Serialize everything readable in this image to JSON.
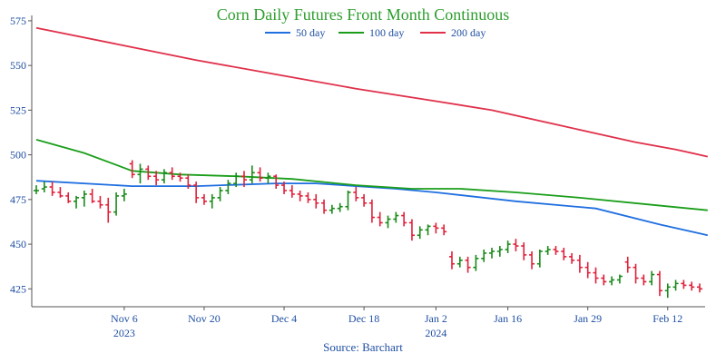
{
  "chart_data": {
    "type": "ohlc",
    "title": "Corn Daily Futures Front Month Continuous",
    "source": "Source: Barchart",
    "xlabel": "",
    "ylabel": "",
    "ylim": [
      415,
      578
    ],
    "yticks": [
      425,
      450,
      475,
      500,
      525,
      550,
      575
    ],
    "xticks": [
      {
        "i": 11,
        "label": "Nov 6",
        "sub": "2023"
      },
      {
        "i": 21,
        "label": "Nov 20",
        "sub": ""
      },
      {
        "i": 31,
        "label": "Dec 4",
        "sub": ""
      },
      {
        "i": 41,
        "label": "Dec 18",
        "sub": ""
      },
      {
        "i": 50,
        "label": "Jan 2",
        "sub": "2024"
      },
      {
        "i": 59,
        "label": "Jan 16",
        "sub": ""
      },
      {
        "i": 69,
        "label": "Jan 29",
        "sub": ""
      },
      {
        "i": 79,
        "label": "Feb 12",
        "sub": ""
      }
    ],
    "legend": [
      {
        "name": "50 day",
        "color": "#1f6fe0"
      },
      {
        "name": "100 day",
        "color": "#1a9e1a"
      },
      {
        "name": "200 day",
        "color": "#e0304a"
      }
    ],
    "up_color": "#1a8a1a",
    "down_color": "#e0203a",
    "n": 84,
    "ohlc": [
      [
        480,
        483,
        478,
        480
      ],
      [
        481,
        485,
        479,
        482
      ],
      [
        482,
        485,
        477,
        479
      ],
      [
        479,
        482,
        476,
        477
      ],
      [
        477,
        479,
        473,
        474
      ],
      [
        474,
        477,
        470,
        476
      ],
      [
        476,
        480,
        471,
        478
      ],
      [
        478,
        481,
        473,
        474
      ],
      [
        474,
        477,
        470,
        472
      ],
      [
        472,
        476,
        462,
        468
      ],
      [
        468,
        479,
        466,
        477
      ],
      [
        477,
        481,
        474,
        478
      ],
      [
        495,
        497,
        487,
        489
      ],
      [
        489,
        495,
        484,
        492
      ],
      [
        492,
        494,
        486,
        488
      ],
      [
        488,
        491,
        483,
        486
      ],
      [
        486,
        492,
        484,
        490
      ],
      [
        490,
        493,
        486,
        488
      ],
      [
        488,
        490,
        485,
        487
      ],
      [
        487,
        489,
        481,
        483
      ],
      [
        483,
        485,
        473,
        476
      ],
      [
        476,
        478,
        472,
        474
      ],
      [
        474,
        478,
        470,
        476
      ],
      [
        476,
        482,
        474,
        480
      ],
      [
        480,
        486,
        478,
        484
      ],
      [
        484,
        490,
        482,
        488
      ],
      [
        488,
        491,
        482,
        486
      ],
      [
        486,
        494,
        484,
        490
      ],
      [
        490,
        493,
        485,
        487
      ],
      [
        487,
        490,
        484,
        488
      ],
      [
        488,
        489,
        481,
        483
      ],
      [
        483,
        485,
        478,
        480
      ],
      [
        480,
        483,
        476,
        478
      ],
      [
        478,
        480,
        474,
        477
      ],
      [
        477,
        479,
        473,
        475
      ],
      [
        475,
        478,
        470,
        473
      ],
      [
        473,
        475,
        467,
        469
      ],
      [
        469,
        472,
        467,
        470
      ],
      [
        470,
        473,
        468,
        471
      ],
      [
        471,
        480,
        469,
        479
      ],
      [
        479,
        482,
        474,
        476
      ],
      [
        476,
        478,
        471,
        473
      ],
      [
        473,
        475,
        462,
        465
      ],
      [
        465,
        468,
        460,
        462
      ],
      [
        462,
        466,
        459,
        464
      ],
      [
        464,
        468,
        462,
        466
      ],
      [
        466,
        468,
        460,
        462
      ],
      [
        462,
        464,
        452,
        455
      ],
      [
        455,
        460,
        453,
        458
      ],
      [
        458,
        461,
        455,
        460
      ],
      [
        460,
        462,
        456,
        459
      ],
      [
        459,
        461,
        455,
        457
      ],
      [
        443,
        446,
        436,
        439
      ],
      [
        439,
        443,
        437,
        441
      ],
      [
        441,
        443,
        434,
        437
      ],
      [
        437,
        444,
        435,
        442
      ],
      [
        442,
        447,
        440,
        445
      ],
      [
        445,
        448,
        442,
        446
      ],
      [
        446,
        449,
        443,
        447
      ],
      [
        447,
        452,
        445,
        450
      ],
      [
        450,
        453,
        446,
        449
      ],
      [
        449,
        451,
        441,
        444
      ],
      [
        444,
        446,
        436,
        439
      ],
      [
        439,
        447,
        437,
        446
      ],
      [
        446,
        449,
        444,
        447
      ],
      [
        447,
        449,
        444,
        446
      ],
      [
        446,
        448,
        441,
        443
      ],
      [
        443,
        445,
        439,
        441
      ],
      [
        441,
        444,
        434,
        437
      ],
      [
        437,
        440,
        431,
        434
      ],
      [
        434,
        437,
        428,
        431
      ],
      [
        431,
        433,
        427,
        429
      ],
      [
        429,
        432,
        427,
        430
      ],
      [
        430,
        433,
        428,
        432
      ],
      [
        440,
        443,
        434,
        437
      ],
      [
        437,
        439,
        428,
        431
      ],
      [
        431,
        433,
        427,
        429
      ],
      [
        429,
        435,
        427,
        433
      ],
      [
        433,
        435,
        421,
        424
      ],
      [
        424,
        428,
        420,
        426
      ],
      [
        426,
        430,
        424,
        428
      ],
      [
        428,
        430,
        425,
        427
      ],
      [
        427,
        429,
        424,
        426
      ],
      [
        426,
        428,
        423,
        425
      ]
    ],
    "series": [
      {
        "name": "50 day",
        "color": "#1f6fe0",
        "points": [
          [
            0,
            485.5
          ],
          [
            12,
            482.5
          ],
          [
            20,
            482.5
          ],
          [
            30,
            484
          ],
          [
            35,
            484
          ],
          [
            40,
            482.5
          ],
          [
            45,
            481
          ],
          [
            50,
            479
          ],
          [
            60,
            474
          ],
          [
            70,
            470
          ],
          [
            78,
            461
          ],
          [
            84,
            455
          ]
        ]
      },
      {
        "name": "100 day",
        "color": "#1a9e1a",
        "points": [
          [
            0,
            508.5
          ],
          [
            6,
            501
          ],
          [
            12,
            491
          ],
          [
            18,
            489
          ],
          [
            25,
            488
          ],
          [
            32,
            486.5
          ],
          [
            40,
            483
          ],
          [
            47,
            481
          ],
          [
            53,
            481
          ],
          [
            60,
            479
          ],
          [
            68,
            476
          ],
          [
            76,
            472.5
          ],
          [
            84,
            469
          ]
        ]
      },
      {
        "name": "200 day",
        "color": "#e0304a",
        "points": [
          [
            0,
            571
          ],
          [
            10,
            562
          ],
          [
            20,
            553
          ],
          [
            30,
            545
          ],
          [
            40,
            537
          ],
          [
            50,
            530
          ],
          [
            57,
            525
          ],
          [
            65,
            517
          ],
          [
            70,
            512
          ],
          [
            75,
            507
          ],
          [
            80,
            503
          ],
          [
            84,
            499
          ]
        ]
      }
    ]
  }
}
